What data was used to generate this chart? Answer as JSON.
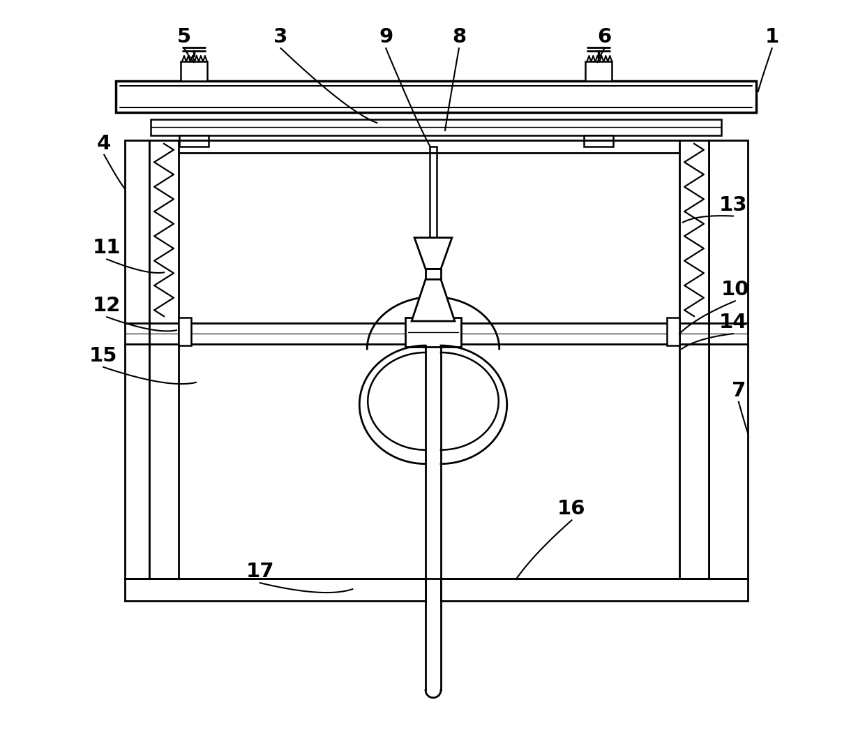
{
  "bg_color": "#ffffff",
  "line_color": "#000000",
  "fig_width": 12.4,
  "fig_height": 10.46,
  "dpi": 100
}
